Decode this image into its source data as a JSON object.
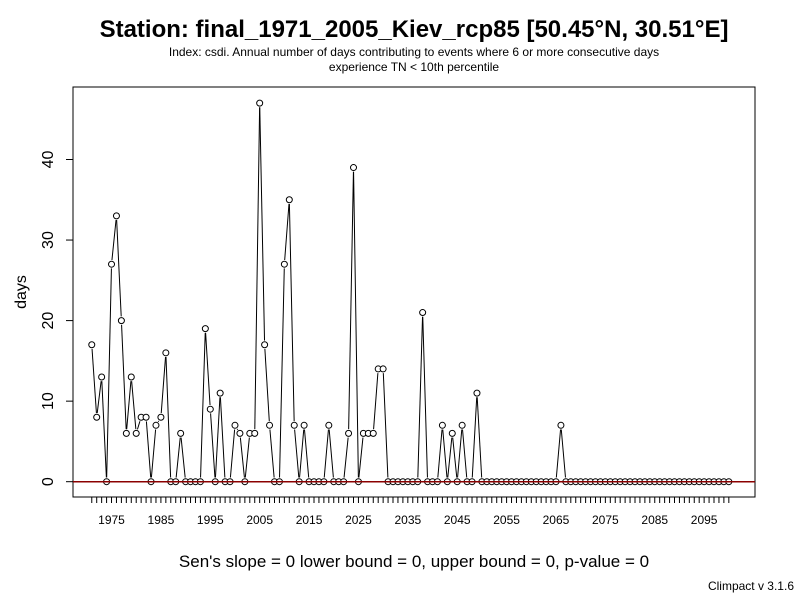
{
  "chart_data": {
    "type": "line",
    "title": "Station: final_1971_2005_Kiev_rcp85 [50.45°N, 30.51°E]",
    "subtitle_lines": [
      "Index: csdi. Annual number of days contributing to events where 6 or more consecutive days",
      "experience TN < 10th percentile"
    ],
    "xlabel": "",
    "ylabel": "days",
    "xlim": [
      1967.2,
      2105.3
    ],
    "ylim": [
      -1.9,
      49.0
    ],
    "x_ticks": [
      1975,
      1985,
      1995,
      2005,
      2015,
      2025,
      2035,
      2045,
      2055,
      2065,
      2075,
      2085,
      2095
    ],
    "y_ticks": [
      0,
      10,
      20,
      30,
      40
    ],
    "x": [
      1971,
      1972,
      1973,
      1974,
      1975,
      1976,
      1977,
      1978,
      1979,
      1980,
      1981,
      1982,
      1983,
      1984,
      1985,
      1986,
      1987,
      1988,
      1989,
      1990,
      1991,
      1992,
      1993,
      1994,
      1995,
      1996,
      1997,
      1998,
      1999,
      2000,
      2001,
      2002,
      2003,
      2004,
      2005,
      2006,
      2007,
      2008,
      2009,
      2010,
      2011,
      2012,
      2013,
      2014,
      2015,
      2016,
      2017,
      2018,
      2019,
      2020,
      2021,
      2022,
      2023,
      2024,
      2025,
      2026,
      2027,
      2028,
      2029,
      2030,
      2031,
      2032,
      2033,
      2034,
      2035,
      2036,
      2037,
      2038,
      2039,
      2040,
      2041,
      2042,
      2043,
      2044,
      2045,
      2046,
      2047,
      2048,
      2049,
      2050,
      2051,
      2052,
      2053,
      2054,
      2055,
      2056,
      2057,
      2058,
      2059,
      2060,
      2061,
      2062,
      2063,
      2064,
      2065,
      2066,
      2067,
      2068,
      2069,
      2070,
      2071,
      2072,
      2073,
      2074,
      2075,
      2076,
      2077,
      2078,
      2079,
      2080,
      2081,
      2082,
      2083,
      2084,
      2085,
      2086,
      2087,
      2088,
      2089,
      2090,
      2091,
      2092,
      2093,
      2094,
      2095,
      2096,
      2097,
      2098,
      2099,
      2100
    ],
    "values": [
      17,
      8,
      13,
      0,
      27,
      33,
      20,
      6,
      13,
      6,
      8,
      8,
      0,
      7,
      8,
      16,
      0,
      0,
      6,
      0,
      0,
      0,
      0,
      19,
      9,
      0,
      11,
      0,
      0,
      7,
      6,
      0,
      6,
      6,
      47,
      17,
      7,
      0,
      0,
      27,
      35,
      7,
      0,
      7,
      0,
      0,
      0,
      0,
      7,
      0,
      0,
      0,
      6,
      39,
      0,
      6,
      6,
      6,
      14,
      14,
      0,
      0,
      0,
      0,
      0,
      0,
      0,
      21,
      0,
      0,
      0,
      7,
      0,
      6,
      0,
      7,
      0,
      0,
      11,
      0,
      0,
      0,
      0,
      0,
      0,
      0,
      0,
      0,
      0,
      0,
      0,
      0,
      0,
      0,
      0,
      7,
      0,
      0,
      0,
      0,
      0,
      0,
      0,
      0,
      0,
      0,
      0,
      0,
      0,
      0,
      0,
      0,
      0,
      0,
      0,
      0,
      0,
      0,
      0,
      0,
      0,
      0,
      0,
      0,
      0,
      0,
      0,
      0,
      0,
      0
    ],
    "trend_line": {
      "slope": 0,
      "intercept": 0,
      "color": "#8b0000"
    },
    "series_color": "#000000",
    "stats_text": "Sen's slope = 0   lower bound = 0,   upper bound = 0,   p-value = 0",
    "credit": "Climpact v 3.1.6"
  }
}
